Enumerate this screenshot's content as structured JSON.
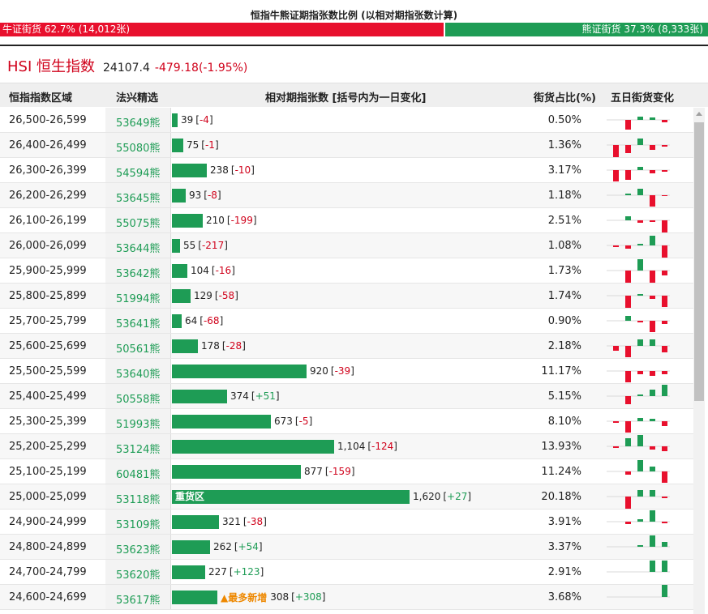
{
  "title": "恒指牛熊证期指张数比例 (以相对期指张数计算)",
  "ratio": {
    "bull_label": "牛证街货 62.7% (14,012张)",
    "bear_label": "熊证街货 37.3% (8,333张)",
    "bull_fraction": 0.627,
    "bull_color": "#e8102d",
    "bear_color": "#1e9c55"
  },
  "index": {
    "name": "HSI 恒生指数",
    "price": "24107.4",
    "change": "-479.18(-1.95%)"
  },
  "columns": {
    "range": "恒指指数区域",
    "code": "法兴精选",
    "qty": "相对期指张数 [括号内为一日变化]",
    "pct": "街货占比(%)",
    "spark": "五日街货变化"
  },
  "rows": [
    {
      "range": "26,500-26,599",
      "code": "53649熊",
      "qty": "39",
      "qty_value": 39,
      "chg": "-4",
      "pct": "0.50%",
      "spark": [
        0,
        -12,
        4,
        3,
        -3
      ]
    },
    {
      "range": "26,400-26,499",
      "code": "55080熊",
      "qty": "75",
      "qty_value": 75,
      "chg": "-1",
      "pct": "1.36%",
      "spark": [
        -16,
        -10,
        8,
        -6,
        -2
      ]
    },
    {
      "range": "26,300-26,399",
      "code": "54594熊",
      "qty": "238",
      "qty_value": 238,
      "chg": "-10",
      "pct": "3.17%",
      "spark": [
        -14,
        -12,
        4,
        -4,
        -2
      ]
    },
    {
      "range": "26,200-26,299",
      "code": "53645熊",
      "qty": "93",
      "qty_value": 93,
      "chg": "-8",
      "pct": "1.18%",
      "spark": [
        0,
        2,
        8,
        -14,
        -1
      ]
    },
    {
      "range": "26,100-26,199",
      "code": "55075熊",
      "qty": "210",
      "qty_value": 210,
      "chg": "-199",
      "pct": "2.51%",
      "spark": [
        0,
        5,
        -3,
        -2,
        -16
      ]
    },
    {
      "range": "26,000-26,099",
      "code": "53644熊",
      "qty": "55",
      "qty_value": 55,
      "chg": "-217",
      "pct": "1.08%",
      "spark": [
        -2,
        -4,
        2,
        12,
        -16
      ]
    },
    {
      "range": "25,900-25,999",
      "code": "53642熊",
      "qty": "104",
      "qty_value": 104,
      "chg": "-16",
      "pct": "1.73%",
      "spark": [
        0,
        -16,
        14,
        -16,
        -6
      ]
    },
    {
      "range": "25,800-25,899",
      "code": "51994熊",
      "qty": "129",
      "qty_value": 129,
      "chg": "-58",
      "pct": "1.74%",
      "spark": [
        0,
        -16,
        2,
        -4,
        -14
      ]
    },
    {
      "range": "25,700-25,799",
      "code": "53641熊",
      "qty": "64",
      "qty_value": 64,
      "chg": "-68",
      "pct": "0.90%",
      "spark": [
        0,
        6,
        -2,
        -14,
        -4
      ]
    },
    {
      "range": "25,600-25,699",
      "code": "50561熊",
      "qty": "178",
      "qty_value": 178,
      "chg": "-28",
      "pct": "2.18%",
      "spark": [
        -6,
        -14,
        8,
        8,
        -8
      ]
    },
    {
      "range": "25,500-25,599",
      "code": "53640熊",
      "qty": "920",
      "qty_value": 920,
      "chg": "-39",
      "pct": "11.17%",
      "spark": [
        0,
        -14,
        -4,
        -6,
        -4
      ]
    },
    {
      "range": "25,400-25,499",
      "code": "50558熊",
      "qty": "374",
      "qty_value": 374,
      "chg": "+51",
      "pct": "5.15%",
      "spark": [
        0,
        -10,
        2,
        8,
        14
      ]
    },
    {
      "range": "25,300-25,399",
      "code": "51993熊",
      "qty": "673",
      "qty_value": 673,
      "chg": "-5",
      "pct": "8.10%",
      "spark": [
        -2,
        -14,
        4,
        3,
        -6
      ]
    },
    {
      "range": "25,200-25,299",
      "code": "53124熊",
      "qty": "1,104",
      "qty_value": 1104,
      "chg": "-124",
      "pct": "13.93%",
      "spark": [
        -2,
        10,
        14,
        -4,
        -6
      ]
    },
    {
      "range": "25,100-25,199",
      "code": "60481熊",
      "qty": "877",
      "qty_value": 877,
      "chg": "-159",
      "pct": "11.24%",
      "spark": [
        0,
        -4,
        14,
        6,
        -14
      ]
    },
    {
      "range": "25,000-25,099",
      "code": "53118熊",
      "qty": "1,620",
      "qty_value": 1620,
      "chg": "+27",
      "pct": "20.18%",
      "bar_label": "重货区",
      "spark": [
        0,
        -16,
        8,
        8,
        -2
      ]
    },
    {
      "range": "24,900-24,999",
      "code": "53109熊",
      "qty": "321",
      "qty_value": 321,
      "chg": "-38",
      "pct": "3.91%",
      "spark": [
        0,
        -3,
        3,
        14,
        -2
      ]
    },
    {
      "range": "24,800-24,899",
      "code": "53623熊",
      "qty": "262",
      "qty_value": 262,
      "chg": "+54",
      "pct": "3.37%",
      "spark": [
        0,
        0,
        2,
        14,
        6
      ]
    },
    {
      "range": "24,700-24,799",
      "code": "53620熊",
      "qty": "227",
      "qty_value": 227,
      "chg": "+123",
      "pct": "2.91%",
      "spark": [
        0,
        0,
        0,
        14,
        14
      ]
    },
    {
      "range": "24,600-24,699",
      "code": "53617熊",
      "qty": "308",
      "qty_value": 308,
      "chg": "+308",
      "pct": "3.68%",
      "tag": "▲最多新增",
      "spark": [
        0,
        0,
        0,
        0,
        16
      ]
    }
  ]
}
